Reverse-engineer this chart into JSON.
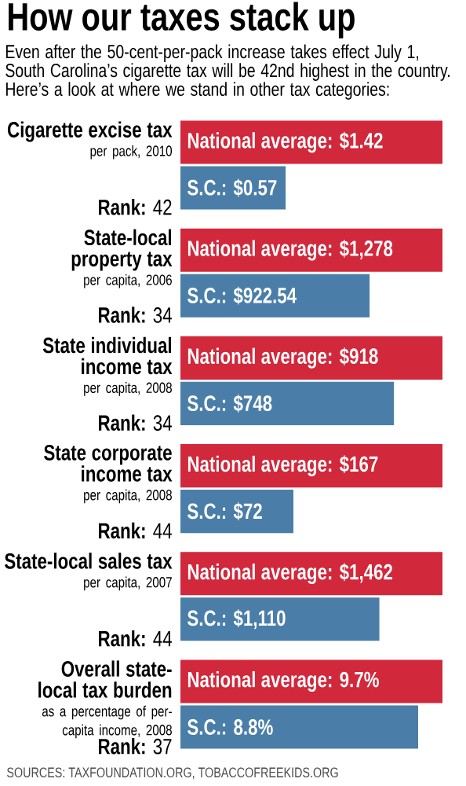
{
  "chart_data": [
    {
      "type": "other",
      "title": "How our taxes stack up",
      "subtitle": "Even after the 50-cent-per-pack increase takes effect July 1, South Carolina’s cigarette tax will be 42nd highest in the country. Here’s a look at where we stand in other tax categories:"
    },
    {
      "type": "bar",
      "orientation": "horizontal",
      "tick_labels": false,
      "title": "Cigarette excise tax",
      "subtitle": "per pack, 2010",
      "categories": [
        null,
        null
      ],
      "values": [
        1.42,
        0.57
      ],
      "colors": [
        "#d1283b",
        "#4a7ea8"
      ],
      "value_labels": [
        "National average: $1.42",
        "S.C.: $0.57"
      ],
      "annotations": [
        "**Rank:** 42"
      ]
    },
    {
      "type": "bar",
      "orientation": "horizontal",
      "tick_labels": false,
      "title": "State-local property tax",
      "subtitle": "per capita, 2006",
      "categories": [
        null,
        null
      ],
      "values": [
        1278,
        922.54
      ],
      "colors": [
        "#d1283b",
        "#4a7ea8"
      ],
      "value_labels": [
        "National average: $1,278",
        "S.C.: $922.54"
      ],
      "annotations": [
        "**Rank:** 34"
      ]
    },
    {
      "type": "bar",
      "orientation": "horizontal",
      "tick_labels": false,
      "title": "State individual income tax",
      "subtitle": "per capita, 2008",
      "categories": [
        null,
        null
      ],
      "values": [
        918,
        748
      ],
      "colors": [
        "#d1283b",
        "#4a7ea8"
      ],
      "value_labels": [
        "National average: $918",
        "S.C.: $748"
      ],
      "annotations": [
        "**Rank:** 34"
      ]
    },
    {
      "type": "bar",
      "orientation": "horizontal",
      "tick_labels": false,
      "title": "State corporate income tax",
      "subtitle": "per capita, 2008",
      "categories": [
        null,
        null
      ],
      "values": [
        167,
        72
      ],
      "colors": [
        "#d1283b",
        "#4a7ea8"
      ],
      "value_labels": [
        "National average: $167",
        "S.C.: $72"
      ],
      "annotations": [
        "**Rank:** 44"
      ]
    },
    {
      "type": "bar",
      "orientation": "horizontal",
      "tick_labels": false,
      "title": "State-local sales tax",
      "subtitle": "per capita, 2007",
      "categories": [
        null,
        null
      ],
      "values": [
        1462,
        1110
      ],
      "colors": [
        "#d1283b",
        "#4a7ea8"
      ],
      "value_labels": [
        "National average: $1,462",
        "S.C.: $1,110"
      ],
      "annotations": [
        "**Rank:** 44"
      ]
    },
    {
      "type": "bar",
      "orientation": "horizontal",
      "tick_labels": false,
      "title": "Overall state-local tax burden",
      "subtitle": "as a percentage of per-capita income, 2008",
      "categories": [
        null,
        null
      ],
      "values": [
        9.7,
        8.8
      ],
      "colors": [
        "#d1283b",
        "#4a7ea8"
      ],
      "value_labels": [
        "National average: 9.7%",
        "S.C.: 8.8%"
      ],
      "annotations": [
        "**Rank:** 37",
        "SOURCES: TAXFOUNDATION.ORG, TOBACCOFREEKIDS.ORG"
      ]
    }
  ]
}
